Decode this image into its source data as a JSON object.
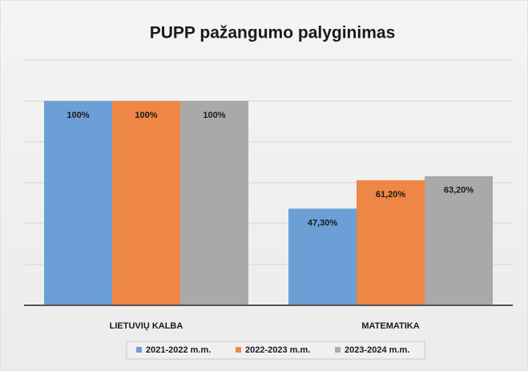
{
  "chart_data": {
    "type": "bar",
    "title": "PUPP pažangumo palyginimas",
    "categories": [
      "LIETUVIŲ KALBA",
      "MATEMATIKA"
    ],
    "series": [
      {
        "name": "2021-2022 m.m.",
        "color": "#6b9fd6",
        "values": [
          100,
          47.3
        ],
        "value_labels": [
          "100%",
          "47,30%"
        ]
      },
      {
        "name": "2022-2023 m.m.",
        "color": "#ee8646",
        "values": [
          100,
          61.2
        ],
        "value_labels": [
          "100%",
          "61,20%"
        ]
      },
      {
        "name": "2023-2024 m.m.",
        "color": "#a9a9a9",
        "values": [
          100,
          63.2
        ],
        "value_labels": [
          "100%",
          "63,20%"
        ]
      }
    ],
    "ylim": [
      0,
      120
    ],
    "yticks": [
      0,
      20,
      40,
      60,
      80,
      100,
      120
    ],
    "grid": true,
    "legend": "bottom"
  }
}
